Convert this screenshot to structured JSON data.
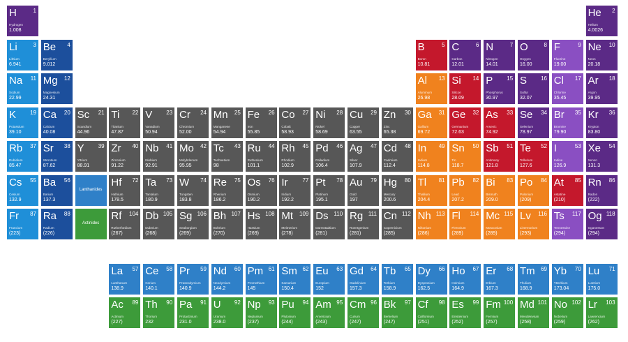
{
  "elements": [
    {
      "symbol": "H",
      "number": 1,
      "name": "Hydrogen",
      "mass": "1.008",
      "color": "#5b2a86"
    },
    {
      "symbol": "He",
      "number": 2,
      "name": "Helium",
      "mass": "4.0026",
      "color": "#5b2a86"
    },
    {
      "symbol": "Li",
      "number": 3,
      "name": "Lithium",
      "mass": "6.941",
      "color": "#1f8fd8"
    },
    {
      "symbol": "Be",
      "number": 4,
      "name": "Beryllium",
      "mass": "9.012",
      "color": "#1c4f9c"
    },
    {
      "symbol": "B",
      "number": 5,
      "name": "Boron",
      "mass": "10.81",
      "color": "#c4182c"
    },
    {
      "symbol": "C",
      "number": 6,
      "name": "Carbon",
      "mass": "12.01",
      "color": "#5b2a86"
    },
    {
      "symbol": "N",
      "number": 7,
      "name": "Nitrogen",
      "mass": "14.01",
      "color": "#5b2a86"
    },
    {
      "symbol": "O",
      "number": 8,
      "name": "Oxygen",
      "mass": "16.00",
      "color": "#5b2a86"
    },
    {
      "symbol": "F",
      "number": 9,
      "name": "Fluorine",
      "mass": "19.00",
      "color": "#8a4fc2"
    },
    {
      "symbol": "Ne",
      "number": 10,
      "name": "Neon",
      "mass": "20.18",
      "color": "#5b2a86"
    },
    {
      "symbol": "Na",
      "number": 11,
      "name": "Sodium",
      "mass": "22.99",
      "color": "#1f8fd8"
    },
    {
      "symbol": "Mg",
      "number": 12,
      "name": "Magnesium",
      "mass": "24.31",
      "color": "#1c4f9c"
    },
    {
      "symbol": "Al",
      "number": 13,
      "name": "Aluminum",
      "mass": "26.98",
      "color": "#f0821e"
    },
    {
      "symbol": "Si",
      "number": 14,
      "name": "Silicon",
      "mass": "28.09",
      "color": "#c4182c"
    },
    {
      "symbol": "P",
      "number": 15,
      "name": "Phosphorus",
      "mass": "30.97",
      "color": "#5b2a86"
    },
    {
      "symbol": "S",
      "number": 16,
      "name": "Sulfur",
      "mass": "32.07",
      "color": "#5b2a86"
    },
    {
      "symbol": "Cl",
      "number": 17,
      "name": "Chlorine",
      "mass": "35.45",
      "color": "#8a4fc2"
    },
    {
      "symbol": "Ar",
      "number": 18,
      "name": "Argon",
      "mass": "39.95",
      "color": "#5b2a86"
    },
    {
      "symbol": "K",
      "number": 19,
      "name": "Potassium",
      "mass": "39.10",
      "color": "#1f8fd8"
    },
    {
      "symbol": "Ca",
      "number": 20,
      "name": "Calcium",
      "mass": "40.08",
      "color": "#1c4f9c"
    },
    {
      "symbol": "Sc",
      "number": 21,
      "name": "Scandium",
      "mass": "44.96",
      "color": "#575757"
    },
    {
      "symbol": "Ti",
      "number": 22,
      "name": "Titanium",
      "mass": "47.87",
      "color": "#575757"
    },
    {
      "symbol": "V",
      "number": 23,
      "name": "Vanadium",
      "mass": "50.94",
      "color": "#575757"
    },
    {
      "symbol": "Cr",
      "number": 24,
      "name": "Chromium",
      "mass": "52.00",
      "color": "#575757"
    },
    {
      "symbol": "Mn",
      "number": 25,
      "name": "Manganese",
      "mass": "54.94",
      "color": "#575757"
    },
    {
      "symbol": "Fe",
      "number": 26,
      "name": "Iron",
      "mass": "55.85",
      "color": "#575757"
    },
    {
      "symbol": "Co",
      "number": 27,
      "name": "Cobalt",
      "mass": "58.93",
      "color": "#575757"
    },
    {
      "symbol": "Ni",
      "number": 28,
      "name": "Nickel",
      "mass": "58.69",
      "color": "#575757"
    },
    {
      "symbol": "Cu",
      "number": 29,
      "name": "Copper",
      "mass": "63.55",
      "color": "#575757"
    },
    {
      "symbol": "Zn",
      "number": 30,
      "name": "Zinc",
      "mass": "65.38",
      "color": "#575757"
    },
    {
      "symbol": "Ga",
      "number": 31,
      "name": "Gallium",
      "mass": "69.72",
      "color": "#f0821e"
    },
    {
      "symbol": "Ge",
      "number": 32,
      "name": "Germanium",
      "mass": "72.63",
      "color": "#c4182c"
    },
    {
      "symbol": "As",
      "number": 33,
      "name": "Arsenic",
      "mass": "74.92",
      "color": "#c4182c"
    },
    {
      "symbol": "Se",
      "number": 34,
      "name": "Selenium",
      "mass": "78.97",
      "color": "#5b2a86"
    },
    {
      "symbol": "Br",
      "number": 35,
      "name": "Bromine",
      "mass": "79.90",
      "color": "#8a4fc2"
    },
    {
      "symbol": "Kr",
      "number": 36,
      "name": "Krypton",
      "mass": "83.80",
      "color": "#5b2a86"
    },
    {
      "symbol": "Rb",
      "number": 37,
      "name": "Rubidium",
      "mass": "85.47",
      "color": "#1f8fd8"
    },
    {
      "symbol": "Sr",
      "number": 38,
      "name": "Strontium",
      "mass": "87.62",
      "color": "#1c4f9c"
    },
    {
      "symbol": "Y",
      "number": 39,
      "name": "Yttrium",
      "mass": "88.91",
      "color": "#575757"
    },
    {
      "symbol": "Zr",
      "number": 40,
      "name": "Zirconium",
      "mass": "91.22",
      "color": "#575757"
    },
    {
      "symbol": "Nb",
      "number": 41,
      "name": "Niobium",
      "mass": "92.91",
      "color": "#575757"
    },
    {
      "symbol": "Mo",
      "number": 42,
      "name": "Molybdenum",
      "mass": "95.95",
      "color": "#575757"
    },
    {
      "symbol": "Tc",
      "number": 43,
      "name": "Technetium",
      "mass": "98",
      "color": "#575757"
    },
    {
      "symbol": "Ru",
      "number": 44,
      "name": "Ruthenium",
      "mass": "101.1",
      "color": "#575757"
    },
    {
      "symbol": "Rh",
      "number": 45,
      "name": "Rhodium",
      "mass": "102.9",
      "color": "#575757"
    },
    {
      "symbol": "Pd",
      "number": 46,
      "name": "Palladium",
      "mass": "106.4",
      "color": "#575757"
    },
    {
      "symbol": "Ag",
      "number": 47,
      "name": "Silver",
      "mass": "107.9",
      "color": "#575757"
    },
    {
      "symbol": "Cd",
      "number": 48,
      "name": "Cadmium",
      "mass": "112.4",
      "color": "#575757"
    },
    {
      "symbol": "In",
      "number": 49,
      "name": "Indium",
      "mass": "114.8",
      "color": "#f0821e"
    },
    {
      "symbol": "Sn",
      "number": 50,
      "name": "Tin",
      "mass": "118.7",
      "color": "#f0821e"
    },
    {
      "symbol": "Sb",
      "number": 51,
      "name": "Antimony",
      "mass": "121.8",
      "color": "#c4182c"
    },
    {
      "symbol": "Te",
      "number": 52,
      "name": "Tellurium",
      "mass": "127.6",
      "color": "#c4182c"
    },
    {
      "symbol": "I",
      "number": 53,
      "name": "Iodine",
      "mass": "126.9",
      "color": "#8a4fc2"
    },
    {
      "symbol": "Xe",
      "number": 54,
      "name": "Xenon",
      "mass": "131.3",
      "color": "#5b2a86"
    },
    {
      "symbol": "Cs",
      "number": 55,
      "name": "Cesium",
      "mass": "132.9",
      "color": "#1f8fd8"
    },
    {
      "symbol": "Ba",
      "number": 56,
      "name": "Barium",
      "mass": "137.3",
      "color": "#1c4f9c"
    },
    {
      "symbol": "La",
      "number": 57,
      "name": "Lanthanum",
      "mass": "138.9",
      "color": "#2f80c8"
    },
    {
      "symbol": "Ce",
      "number": 58,
      "name": "Cerium",
      "mass": "140.1",
      "color": "#2f80c8"
    },
    {
      "symbol": "Pr",
      "number": 59,
      "name": "Praseodymium",
      "mass": "140.9",
      "color": "#2f80c8"
    },
    {
      "symbol": "Nd",
      "number": 60,
      "name": "Neodymium",
      "mass": "144.2",
      "color": "#2f80c8"
    },
    {
      "symbol": "Pm",
      "number": 61,
      "name": "Promethium",
      "mass": "145",
      "color": "#2f80c8"
    },
    {
      "symbol": "Sm",
      "number": 62,
      "name": "Samarium",
      "mass": "150.4",
      "color": "#2f80c8"
    },
    {
      "symbol": "Eu",
      "number": 63,
      "name": "Europium",
      "mass": "152",
      "color": "#2f80c8"
    },
    {
      "symbol": "Gd",
      "number": 64,
      "name": "Gadolinium",
      "mass": "157.3",
      "color": "#2f80c8"
    },
    {
      "symbol": "Tb",
      "number": 65,
      "name": "Terbium",
      "mass": "158.9",
      "color": "#2f80c8"
    },
    {
      "symbol": "Dy",
      "number": 66,
      "name": "Dysprosium",
      "mass": "162.5",
      "color": "#2f80c8"
    },
    {
      "symbol": "Ho",
      "number": 67,
      "name": "Holmium",
      "mass": "164.9",
      "color": "#2f80c8"
    },
    {
      "symbol": "Er",
      "number": 68,
      "name": "Erbium",
      "mass": "167.3",
      "color": "#2f80c8"
    },
    {
      "symbol": "Tm",
      "number": 69,
      "name": "Thulium",
      "mass": "168.9",
      "color": "#2f80c8"
    },
    {
      "symbol": "Yb",
      "number": 70,
      "name": "Ytterbium",
      "mass": "173.04",
      "color": "#2f80c8"
    },
    {
      "symbol": "Lu",
      "number": 71,
      "name": "Lutetium",
      "mass": "175.0",
      "color": "#2f80c8"
    },
    {
      "symbol": "Hf",
      "number": 72,
      "name": "Hafnium",
      "mass": "178.5",
      "color": "#575757"
    },
    {
      "symbol": "Ta",
      "number": 73,
      "name": "Tantalum",
      "mass": "180.9",
      "color": "#575757"
    },
    {
      "symbol": "W",
      "number": 74,
      "name": "Tungsten",
      "mass": "183.8",
      "color": "#575757"
    },
    {
      "symbol": "Re",
      "number": 75,
      "name": "Rhenium",
      "mass": "186.2",
      "color": "#575757"
    },
    {
      "symbol": "Os",
      "number": 76,
      "name": "Osmium",
      "mass": "190.2",
      "color": "#575757"
    },
    {
      "symbol": "Ir",
      "number": 77,
      "name": "Iridium",
      "mass": "192.2",
      "color": "#575757"
    },
    {
      "symbol": "Pt",
      "number": 78,
      "name": "Platinum",
      "mass": "195.1",
      "color": "#575757"
    },
    {
      "symbol": "Au",
      "number": 79,
      "name": "Gold",
      "mass": "197",
      "color": "#575757"
    },
    {
      "symbol": "Hg",
      "number": 80,
      "name": "Mercury",
      "mass": "200.6",
      "color": "#575757"
    },
    {
      "symbol": "Tl",
      "number": 81,
      "name": "Thallium",
      "mass": "204.4",
      "color": "#f0821e"
    },
    {
      "symbol": "Pb",
      "number": 82,
      "name": "Lead",
      "mass": "207.2",
      "color": "#f0821e"
    },
    {
      "symbol": "Bi",
      "number": 83,
      "name": "Bismuth",
      "mass": "209.0",
      "color": "#f0821e"
    },
    {
      "symbol": "Po",
      "number": 84,
      "name": "Polonium",
      "mass": "(209)",
      "color": "#f0821e"
    },
    {
      "symbol": "At",
      "number": 85,
      "name": "Astatine",
      "mass": "(210)",
      "color": "#c4182c"
    },
    {
      "symbol": "Rn",
      "number": 86,
      "name": "Radon",
      "mass": "(222)",
      "color": "#5b2a86"
    },
    {
      "symbol": "Fr",
      "number": 87,
      "name": "Francium",
      "mass": "(223)",
      "color": "#1f8fd8"
    },
    {
      "symbol": "Ra",
      "number": 88,
      "name": "Radium",
      "mass": "(226)",
      "color": "#1c4f9c"
    },
    {
      "symbol": "Ac",
      "number": 89,
      "name": "Actinium",
      "mass": "(227)",
      "color": "#3d9b3a"
    },
    {
      "symbol": "Th",
      "number": 90,
      "name": "Thorium",
      "mass": "232",
      "color": "#3d9b3a"
    },
    {
      "symbol": "Pa",
      "number": 91,
      "name": "Protactinium",
      "mass": "231.0",
      "color": "#3d9b3a"
    },
    {
      "symbol": "U",
      "number": 92,
      "name": "Uranium",
      "mass": "238.0",
      "color": "#3d9b3a"
    },
    {
      "symbol": "Np",
      "number": 93,
      "name": "Neptunium",
      "mass": "(237)",
      "color": "#3d9b3a"
    },
    {
      "symbol": "Pu",
      "number": 94,
      "name": "Plutonium",
      "mass": "(244)",
      "color": "#3d9b3a"
    },
    {
      "symbol": "Am",
      "number": 95,
      "name": "Americium",
      "mass": "(243)",
      "color": "#3d9b3a"
    },
    {
      "symbol": "Cm",
      "number": 96,
      "name": "Curium",
      "mass": "(247)",
      "color": "#3d9b3a"
    },
    {
      "symbol": "Bk",
      "number": 97,
      "name": "Berkelium",
      "mass": "(247)",
      "color": "#3d9b3a"
    },
    {
      "symbol": "Cf",
      "number": 98,
      "name": "Californium",
      "mass": "(251)",
      "color": "#3d9b3a"
    },
    {
      "symbol": "Es",
      "number": 99,
      "name": "Einsteinium",
      "mass": "(252)",
      "color": "#3d9b3a"
    },
    {
      "symbol": "Fm",
      "number": 100,
      "name": "Fermium",
      "mass": "(257)",
      "color": "#3d9b3a"
    },
    {
      "symbol": "Md",
      "number": 101,
      "name": "Mendelevium",
      "mass": "(258)",
      "color": "#3d9b3a"
    },
    {
      "symbol": "No",
      "number": 102,
      "name": "Nobelium",
      "mass": "(259)",
      "color": "#3d9b3a"
    },
    {
      "symbol": "Lr",
      "number": 103,
      "name": "Lawrencium",
      "mass": "(262)",
      "color": "#3d9b3a"
    },
    {
      "symbol": "Rf",
      "number": 104,
      "name": "Rutherfordium",
      "mass": "(267)",
      "color": "#575757"
    },
    {
      "symbol": "Db",
      "number": 105,
      "name": "Dubnium",
      "mass": "(268)",
      "color": "#575757"
    },
    {
      "symbol": "Sg",
      "number": 106,
      "name": "Seaborgium",
      "mass": "(269)",
      "color": "#575757"
    },
    {
      "symbol": "Bh",
      "number": 107,
      "name": "Bohrium",
      "mass": "(270)",
      "color": "#575757"
    },
    {
      "symbol": "Hs",
      "number": 108,
      "name": "Hassium",
      "mass": "(269)",
      "color": "#575757"
    },
    {
      "symbol": "Mt",
      "number": 109,
      "name": "Meitnerium",
      "mass": "(278)",
      "color": "#575757"
    },
    {
      "symbol": "Ds",
      "number": 110,
      "name": "Darmstadtium",
      "mass": "(281)",
      "color": "#575757"
    },
    {
      "symbol": "Rg",
      "number": 111,
      "name": "Roentgenium",
      "mass": "(281)",
      "color": "#575757"
    },
    {
      "symbol": "Cn",
      "number": 112,
      "name": "Copernicium",
      "mass": "(285)",
      "color": "#575757"
    },
    {
      "symbol": "Nh",
      "number": 113,
      "name": "Nihonium",
      "mass": "(286)",
      "color": "#f0821e"
    },
    {
      "symbol": "Fl",
      "number": 114,
      "name": "Flerovium",
      "mass": "(289)",
      "color": "#f0821e"
    },
    {
      "symbol": "Mc",
      "number": 115,
      "name": "Moscovium",
      "mass": "(289)",
      "color": "#f0821e"
    },
    {
      "symbol": "Lv",
      "number": 116,
      "name": "Livermorium",
      "mass": "(293)",
      "color": "#f0821e"
    },
    {
      "symbol": "Ts",
      "number": 117,
      "name": "Tennessine",
      "mass": "(294)",
      "color": "#8a4fc2"
    },
    {
      "symbol": "Og",
      "number": 118,
      "name": "Oganesson",
      "mass": "(294)",
      "color": "#5b2a86"
    }
  ],
  "placeholders": [
    {
      "label": "Lanthanides",
      "color": "#2f80c8"
    },
    {
      "label": "Actinides",
      "color": "#3d9b3a"
    }
  ]
}
